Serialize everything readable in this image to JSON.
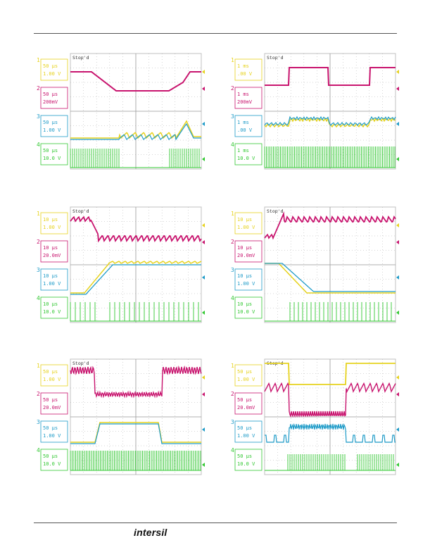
{
  "footer": {
    "logo_text": "intersil"
  },
  "colors": {
    "ch1": "#e6d21e",
    "ch2": "#c8146e",
    "ch3": "#1e9bc8",
    "ch4": "#32c832",
    "grid": "#999999",
    "border": "#c0c0c0"
  },
  "scopes": [
    {
      "id": "scope-1",
      "tag": "Stop'd",
      "channels": [
        {
          "num": "1",
          "div": "50 µs",
          "scale": "1.00 V"
        },
        {
          "num": "2",
          "div": "50 µs",
          "scale": "200mV"
        },
        {
          "num": "3",
          "div": "50 µs",
          "scale": "1.00 V"
        },
        {
          "num": "4",
          "div": "50 µs",
          "scale": "10.0 V"
        }
      ]
    },
    {
      "id": "scope-2",
      "tag": "Stop'd",
      "channels": [
        {
          "num": "1",
          "div": "1 ms",
          "scale": ".00 V"
        },
        {
          "num": "2",
          "div": "1 ms",
          "scale": "200mV"
        },
        {
          "num": "3",
          "div": "1 ms",
          "scale": ".00 V"
        },
        {
          "num": "4",
          "div": "1 ms",
          "scale": "10.0 V"
        }
      ]
    },
    {
      "id": "scope-3",
      "tag": "Stop'd",
      "channels": [
        {
          "num": "1",
          "div": "10 µs",
          "scale": "1.00 V"
        },
        {
          "num": "2",
          "div": "10 µs",
          "scale": "20.0mV"
        },
        {
          "num": "3",
          "div": "10 µs",
          "scale": "1.00 V"
        },
        {
          "num": "4",
          "div": "10 µs",
          "scale": "10.0 V"
        }
      ]
    },
    {
      "id": "scope-4",
      "tag": "Stop'd",
      "channels": [
        {
          "num": "1",
          "div": "10 µs",
          "scale": "1.00 V"
        },
        {
          "num": "2",
          "div": "10 µs",
          "scale": "20.0mV"
        },
        {
          "num": "3",
          "div": "10 µs",
          "scale": "1.00 V"
        },
        {
          "num": "4",
          "div": "10 µs",
          "scale": "10.0 V"
        }
      ]
    },
    {
      "id": "scope-5",
      "tag": "Stop'd",
      "channels": [
        {
          "num": "1",
          "div": "50 µs",
          "scale": "1.00 V"
        },
        {
          "num": "2",
          "div": "50 µs",
          "scale": "20.0mV"
        },
        {
          "num": "3",
          "div": "50 µs",
          "scale": "1.00 V"
        },
        {
          "num": "4",
          "div": "50 µs",
          "scale": "10.0 V"
        }
      ]
    },
    {
      "id": "scope-6",
      "tag": "Stop'd",
      "channels": [
        {
          "num": "1",
          "div": "50 µs",
          "scale": "1.00 V"
        },
        {
          "num": "2",
          "div": "50 µs",
          "scale": "20.0mV"
        },
        {
          "num": "3",
          "div": "50 µs",
          "scale": "1.00 V"
        },
        {
          "num": "4",
          "div": "50 µs",
          "scale": "10.0 V"
        }
      ]
    }
  ]
}
